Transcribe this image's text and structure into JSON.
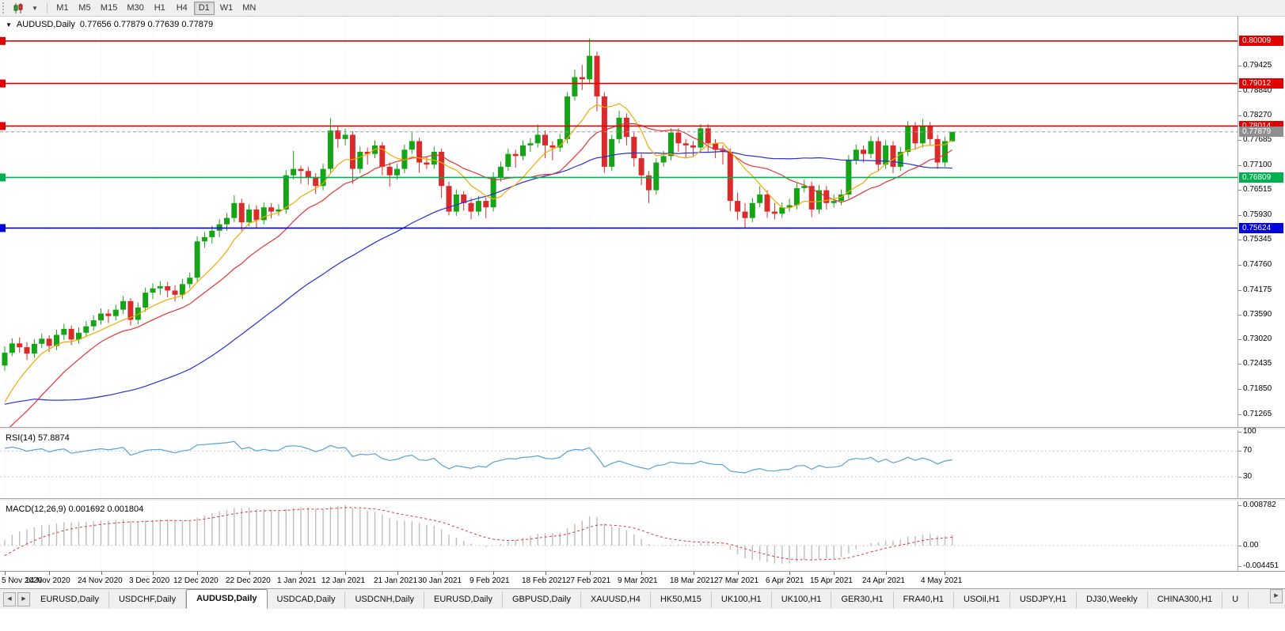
{
  "toolbar": {
    "timeframes": [
      "M1",
      "M5",
      "M15",
      "M30",
      "H1",
      "H4",
      "D1",
      "W1",
      "MN"
    ],
    "active_timeframe": "D1",
    "chart_type_icon": "candlestick-chart-icon",
    "dropdown_icon": "chevron-down-icon"
  },
  "panes": {
    "symbol": "AUDUSD,Daily",
    "ohlc": "0.77656 0.77879 0.77639 0.77879",
    "rsi_label": "RSI(14) 57.8874",
    "macd_label": "MACD(12,26,9) 0.001692 0.001804"
  },
  "theme": {
    "up": "#17a317",
    "down": "#d92b2b",
    "grid": "#ececec",
    "current_line": "#9a9a9a",
    "current_tag": "#8f8f8f",
    "macd_hist": "#bdbdbd",
    "macd_signal": "#e03434"
  },
  "tabs": {
    "scroll_left_icon": "arrow-left-icon",
    "scroll_right_icon": "arrow-right-icon",
    "items": [
      "EURUSD,Daily",
      "USDCHF,Daily",
      "AUDUSD,Daily",
      "USDCAD,Daily",
      "USDCNH,Daily",
      "EURUSD,Daily",
      "GBPUSD,Daily",
      "XAUUSD,H4",
      "HK50,M15",
      "UK100,H1",
      "UK100,H1",
      "GER30,H1",
      "FRA40,H1",
      "USOil,H1",
      "USDJPY,H1",
      "DJ30,Weekly",
      "CHINA300,H1",
      "U"
    ],
    "active_index": 2
  },
  "chart_data": {
    "type": "candlestick",
    "symbol": "AUDUSD",
    "timeframe": "Daily",
    "price_axis": {
      "max": 0.8058,
      "min": 0.7096,
      "ticks": [
        "0.79425",
        "0.78840",
        "0.78270",
        "0.77685",
        "0.77100",
        "0.76515",
        "0.75930",
        "0.75345",
        "0.74760",
        "0.74175",
        "0.73590",
        "0.73020",
        "0.72435",
        "0.71850",
        "0.71265"
      ]
    },
    "levels": [
      {
        "label": "0.80009",
        "price": 0.80009,
        "color": "#e00000"
      },
      {
        "label": "0.79012",
        "price": 0.79012,
        "color": "#e00000"
      },
      {
        "label": "0.78014",
        "price": 0.78014,
        "color": "#e00000"
      },
      {
        "label": "0.76809",
        "price": 0.76809,
        "color": "#00b050"
      },
      {
        "label": "0.75624",
        "price": 0.75624,
        "color": "#0000dd"
      }
    ],
    "current_price": 0.77879,
    "current_price_label": "0.77879",
    "time_labels": [
      {
        "label": "5 Nov 2020",
        "i": 0
      },
      {
        "label": "14 Nov 2020",
        "i": 6
      },
      {
        "label": "24 Nov 2020",
        "i": 13
      },
      {
        "label": "3 Dec 2020",
        "i": 20
      },
      {
        "label": "12 Dec 2020",
        "i": 26
      },
      {
        "label": "22 Dec 2020",
        "i": 33
      },
      {
        "label": "1 Jan 2021",
        "i": 40
      },
      {
        "label": "12 Jan 2021",
        "i": 46
      },
      {
        "label": "21 Jan 2021",
        "i": 53
      },
      {
        "label": "30 Jan 2021",
        "i": 59
      },
      {
        "label": "9 Feb 2021",
        "i": 66
      },
      {
        "label": "18 Feb 2021",
        "i": 73
      },
      {
        "label": "27 Feb 2021",
        "i": 79
      },
      {
        "label": "9 Mar 2021",
        "i": 86
      },
      {
        "label": "18 Mar 2021",
        "i": 93
      },
      {
        "label": "27 Mar 2021",
        "i": 99
      },
      {
        "label": "6 Apr 2021",
        "i": 106
      },
      {
        "label": "15 Apr 2021",
        "i": 112
      },
      {
        "label": "24 Apr 2021",
        "i": 119
      },
      {
        "label": "4 May 2021",
        "i": 127
      }
    ],
    "overlays": [
      {
        "name": "ma-fast",
        "period": 8,
        "color": "#f5a800"
      },
      {
        "name": "ma-mid",
        "period": 16,
        "color": "#e33434"
      },
      {
        "name": "ma-slow",
        "period": 45,
        "color": "#2431d4"
      }
    ],
    "rsi": {
      "period": 14,
      "display": "57.8874",
      "color": "#56a2d8",
      "axis": {
        "max": 100,
        "min": 4
      },
      "ticks": [
        {
          "label": "100",
          "v": 100
        },
        {
          "label": "70",
          "v": 70
        },
        {
          "label": "30",
          "v": 30
        }
      ],
      "guides": [
        70,
        30
      ]
    },
    "macd": {
      "fast": 12,
      "slow": 26,
      "signal": 9,
      "display": "0.001692 0.001804",
      "axis": {
        "max": 0.0092,
        "min": -0.0047
      },
      "ticks": [
        {
          "label": "0.008782",
          "v": 0.008782
        },
        {
          "label": "0.00",
          "v": 0
        },
        {
          "label": "-0.004451",
          "v": -0.004451
        }
      ]
    },
    "prior_closes": [
      0.7355,
      0.734,
      0.7325,
      0.7308,
      0.729,
      0.7272,
      0.7256,
      0.7241,
      0.7229,
      0.7219,
      0.721,
      0.72,
      0.719,
      0.7176,
      0.7161,
      0.715,
      0.714,
      0.713,
      0.712,
      0.711,
      0.71,
      0.7086,
      0.7071,
      0.7056,
      0.7041,
      0.703,
      0.702,
      0.701,
      0.7001,
      0.6995,
      0.7004,
      0.7019,
      0.7039,
      0.7059,
      0.7079,
      0.7099,
      0.7129,
      0.7159,
      0.7199,
      0.7239
    ],
    "candles": [
      [
        0.724,
        0.7285,
        0.7228,
        0.727
      ],
      [
        0.727,
        0.7304,
        0.7262,
        0.7292
      ],
      [
        0.7292,
        0.7306,
        0.727,
        0.7283
      ],
      [
        0.7283,
        0.7295,
        0.7253,
        0.7268
      ],
      [
        0.7268,
        0.7302,
        0.7258,
        0.7291
      ],
      [
        0.7291,
        0.7315,
        0.7281,
        0.7303
      ],
      [
        0.7303,
        0.7311,
        0.7272,
        0.7286
      ],
      [
        0.7286,
        0.7324,
        0.7276,
        0.7312
      ],
      [
        0.7312,
        0.7338,
        0.73,
        0.7326
      ],
      [
        0.7326,
        0.7334,
        0.7288,
        0.7301
      ],
      [
        0.7301,
        0.7329,
        0.7291,
        0.7317
      ],
      [
        0.7317,
        0.7344,
        0.7307,
        0.7332
      ],
      [
        0.7332,
        0.7358,
        0.7322,
        0.7346
      ],
      [
        0.7346,
        0.7374,
        0.7336,
        0.7362
      ],
      [
        0.7362,
        0.7372,
        0.734,
        0.7356
      ],
      [
        0.7356,
        0.7383,
        0.7346,
        0.7371
      ],
      [
        0.7371,
        0.7403,
        0.7361,
        0.7391
      ],
      [
        0.7391,
        0.7398,
        0.7334,
        0.7347
      ],
      [
        0.7347,
        0.7388,
        0.7337,
        0.7376
      ],
      [
        0.7376,
        0.7423,
        0.7366,
        0.7411
      ],
      [
        0.7411,
        0.7433,
        0.7396,
        0.7421
      ],
      [
        0.7421,
        0.7438,
        0.7406,
        0.7426
      ],
      [
        0.7426,
        0.7436,
        0.74,
        0.7416
      ],
      [
        0.7416,
        0.7428,
        0.739,
        0.7406
      ],
      [
        0.7406,
        0.7443,
        0.7396,
        0.7431
      ],
      [
        0.7431,
        0.7458,
        0.7421,
        0.7446
      ],
      [
        0.7446,
        0.7543,
        0.7436,
        0.7531
      ],
      [
        0.7531,
        0.7553,
        0.7516,
        0.7541
      ],
      [
        0.7541,
        0.7568,
        0.7526,
        0.7556
      ],
      [
        0.7556,
        0.7583,
        0.7541,
        0.7571
      ],
      [
        0.7571,
        0.7598,
        0.7556,
        0.7586
      ],
      [
        0.7586,
        0.7639,
        0.7576,
        0.7621
      ],
      [
        0.7621,
        0.7631,
        0.7556,
        0.7576
      ],
      [
        0.7576,
        0.7618,
        0.7566,
        0.7606
      ],
      [
        0.7606,
        0.7616,
        0.7562,
        0.7581
      ],
      [
        0.7581,
        0.7623,
        0.7571,
        0.7611
      ],
      [
        0.7611,
        0.7621,
        0.7585,
        0.7601
      ],
      [
        0.7601,
        0.7618,
        0.7591,
        0.7606
      ],
      [
        0.7606,
        0.7698,
        0.7596,
        0.7686
      ],
      [
        0.7686,
        0.7743,
        0.7676,
        0.7701
      ],
      [
        0.7701,
        0.7708,
        0.7666,
        0.7696
      ],
      [
        0.7696,
        0.7706,
        0.7664,
        0.7681
      ],
      [
        0.7681,
        0.7691,
        0.7642,
        0.7661
      ],
      [
        0.7661,
        0.7713,
        0.7651,
        0.7701
      ],
      [
        0.7701,
        0.782,
        0.7691,
        0.7791
      ],
      [
        0.7791,
        0.7801,
        0.775,
        0.7771
      ],
      [
        0.7771,
        0.7795,
        0.7756,
        0.7781
      ],
      [
        0.7781,
        0.7789,
        0.7666,
        0.7701
      ],
      [
        0.7701,
        0.7753,
        0.7691,
        0.7741
      ],
      [
        0.7741,
        0.7751,
        0.7711,
        0.7736
      ],
      [
        0.7736,
        0.7768,
        0.7726,
        0.7756
      ],
      [
        0.7756,
        0.7764,
        0.7686,
        0.7706
      ],
      [
        0.7706,
        0.7716,
        0.7659,
        0.7686
      ],
      [
        0.7686,
        0.7713,
        0.7676,
        0.7701
      ],
      [
        0.7701,
        0.7758,
        0.7691,
        0.7746
      ],
      [
        0.7746,
        0.7786,
        0.7736,
        0.7766
      ],
      [
        0.7766,
        0.7774,
        0.7692,
        0.7716
      ],
      [
        0.7716,
        0.7731,
        0.7701,
        0.7711
      ],
      [
        0.7711,
        0.7753,
        0.7701,
        0.7741
      ],
      [
        0.7741,
        0.7749,
        0.7633,
        0.7661
      ],
      [
        0.7661,
        0.7671,
        0.7592,
        0.7601
      ],
      [
        0.7601,
        0.7653,
        0.7591,
        0.7641
      ],
      [
        0.7641,
        0.7649,
        0.7603,
        0.7621
      ],
      [
        0.7621,
        0.7633,
        0.7583,
        0.7601
      ],
      [
        0.7601,
        0.7638,
        0.7591,
        0.7626
      ],
      [
        0.7626,
        0.7634,
        0.7585,
        0.7611
      ],
      [
        0.7611,
        0.7693,
        0.7601,
        0.7681
      ],
      [
        0.7681,
        0.7718,
        0.7671,
        0.7706
      ],
      [
        0.7706,
        0.7748,
        0.7696,
        0.7736
      ],
      [
        0.7736,
        0.7746,
        0.7704,
        0.7731
      ],
      [
        0.7731,
        0.7768,
        0.7721,
        0.7756
      ],
      [
        0.7756,
        0.7773,
        0.7741,
        0.7761
      ],
      [
        0.7761,
        0.7805,
        0.7751,
        0.7781
      ],
      [
        0.7781,
        0.7791,
        0.7726,
        0.7756
      ],
      [
        0.7756,
        0.7766,
        0.7721,
        0.7751
      ],
      [
        0.7751,
        0.7783,
        0.7741,
        0.7771
      ],
      [
        0.7771,
        0.7881,
        0.7761,
        0.7871
      ],
      [
        0.7871,
        0.7934,
        0.7861,
        0.7916
      ],
      [
        0.7916,
        0.7945,
        0.7886,
        0.7911
      ],
      [
        0.7911,
        0.8007,
        0.7901,
        0.7966
      ],
      [
        0.7966,
        0.7976,
        0.7836,
        0.7871
      ],
      [
        0.7871,
        0.7881,
        0.7692,
        0.7706
      ],
      [
        0.7706,
        0.7781,
        0.7696,
        0.7771
      ],
      [
        0.7771,
        0.7838,
        0.7761,
        0.7821
      ],
      [
        0.7821,
        0.7831,
        0.7756,
        0.7776
      ],
      [
        0.7776,
        0.7786,
        0.7706,
        0.7726
      ],
      [
        0.7726,
        0.7736,
        0.7663,
        0.7686
      ],
      [
        0.7686,
        0.7696,
        0.7621,
        0.7651
      ],
      [
        0.7651,
        0.7726,
        0.7641,
        0.7716
      ],
      [
        0.7716,
        0.7743,
        0.7706,
        0.7731
      ],
      [
        0.7731,
        0.7796,
        0.7721,
        0.7786
      ],
      [
        0.7786,
        0.7796,
        0.7741,
        0.7761
      ],
      [
        0.7761,
        0.7771,
        0.7726,
        0.7756
      ],
      [
        0.7756,
        0.7766,
        0.7731,
        0.7751
      ],
      [
        0.7751,
        0.7806,
        0.7741,
        0.7796
      ],
      [
        0.7796,
        0.7806,
        0.7741,
        0.7761
      ],
      [
        0.7761,
        0.7771,
        0.7726,
        0.7746
      ],
      [
        0.7746,
        0.7756,
        0.7711,
        0.7741
      ],
      [
        0.7741,
        0.7749,
        0.7602,
        0.7626
      ],
      [
        0.7626,
        0.7646,
        0.7581,
        0.7601
      ],
      [
        0.7601,
        0.7621,
        0.7562,
        0.7586
      ],
      [
        0.7586,
        0.7633,
        0.7576,
        0.7621
      ],
      [
        0.7621,
        0.7661,
        0.7611,
        0.7641
      ],
      [
        0.7641,
        0.7651,
        0.7586,
        0.7601
      ],
      [
        0.7601,
        0.7621,
        0.7583,
        0.7596
      ],
      [
        0.7596,
        0.7623,
        0.7586,
        0.7611
      ],
      [
        0.7611,
        0.7631,
        0.7601,
        0.7616
      ],
      [
        0.7616,
        0.7668,
        0.7606,
        0.7656
      ],
      [
        0.7656,
        0.7676,
        0.7646,
        0.7661
      ],
      [
        0.7661,
        0.7671,
        0.7588,
        0.7606
      ],
      [
        0.7606,
        0.7663,
        0.7596,
        0.7651
      ],
      [
        0.7651,
        0.7661,
        0.7606,
        0.7621
      ],
      [
        0.7621,
        0.7641,
        0.7611,
        0.7626
      ],
      [
        0.7626,
        0.7653,
        0.7616,
        0.7641
      ],
      [
        0.7641,
        0.7733,
        0.7631,
        0.7721
      ],
      [
        0.7721,
        0.7758,
        0.7711,
        0.7746
      ],
      [
        0.7746,
        0.7756,
        0.7716,
        0.7736
      ],
      [
        0.7736,
        0.7778,
        0.7726,
        0.7766
      ],
      [
        0.7766,
        0.7776,
        0.7696,
        0.7711
      ],
      [
        0.7711,
        0.7768,
        0.7701,
        0.7756
      ],
      [
        0.7756,
        0.7766,
        0.7691,
        0.7706
      ],
      [
        0.7706,
        0.7753,
        0.7696,
        0.7741
      ],
      [
        0.7741,
        0.7813,
        0.7731,
        0.7801
      ],
      [
        0.7801,
        0.7811,
        0.7746,
        0.7761
      ],
      [
        0.7761,
        0.7818,
        0.7751,
        0.7801
      ],
      [
        0.7801,
        0.7811,
        0.7756,
        0.7771
      ],
      [
        0.7771,
        0.7781,
        0.7701,
        0.7716
      ],
      [
        0.7716,
        0.7776,
        0.7706,
        0.7766
      ],
      [
        0.77656,
        0.77879,
        0.77639,
        0.77879
      ]
    ]
  }
}
